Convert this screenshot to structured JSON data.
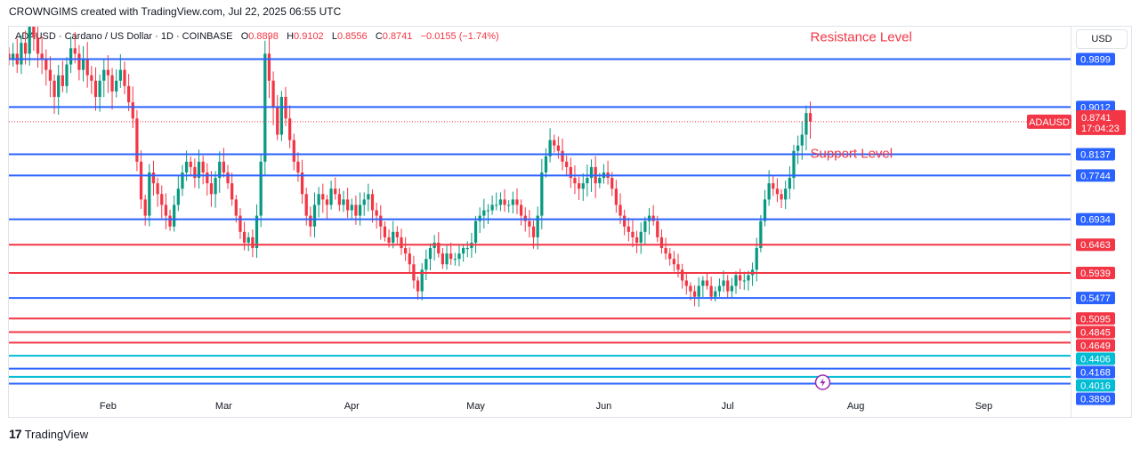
{
  "header": {
    "credit": "CROWNGIMS created with TradingView.com, Jul 22, 2025 06:55 UTC"
  },
  "legend": {
    "symbol": "ADAUSD · Cardano / US Dollar · 1D · COINBASE",
    "o_label": "O",
    "o_value": "0.8898",
    "h_label": "H",
    "h_value": "0.9102",
    "l_label": "L",
    "l_value": "0.8556",
    "c_label": "C",
    "c_value": "0.8741",
    "change": "−0.0155 (−1.74%)"
  },
  "toolbar": {
    "currency": "USD"
  },
  "footer": {
    "brand": "TradingView"
  },
  "colors": {
    "up": "#089981",
    "down": "#f23645",
    "blue": "#2962ff",
    "red": "#f23645",
    "teal": "#00bcd4",
    "annotation": "#f23645"
  },
  "chart_data": {
    "type": "candlestick",
    "symbol": "ADAUSD",
    "x_labels": [
      "Feb",
      "Mar",
      "Apr",
      "May",
      "Jun",
      "Jul",
      "Aug",
      "Sep"
    ],
    "x_dates": [
      "2025-02-01",
      "2025-03-01",
      "2025-04-01",
      "2025-05-01",
      "2025-06-01",
      "2025-07-01",
      "2025-08-01",
      "2025-09-01"
    ],
    "ylim": [
      0.375,
      1.05
    ],
    "last_price": {
      "label": "ADAUSD",
      "value": "0.8741",
      "countdown": "17:04:23",
      "price": 0.8741
    },
    "levels": [
      {
        "price": 0.9899,
        "label": "0.9899",
        "color": "blue"
      },
      {
        "price": 0.9012,
        "label": "0.9012",
        "color": "blue"
      },
      {
        "price": 0.8137,
        "label": "0.8137",
        "color": "blue"
      },
      {
        "price": 0.7744,
        "label": "0.7744",
        "color": "blue"
      },
      {
        "price": 0.6934,
        "label": "0.6934",
        "color": "blue"
      },
      {
        "price": 0.6463,
        "label": "0.6463",
        "color": "red"
      },
      {
        "price": 0.5939,
        "label": "0.5939",
        "color": "red"
      },
      {
        "price": 0.5477,
        "label": "0.5477",
        "color": "blue"
      },
      {
        "price": 0.5095,
        "label": "0.5095",
        "color": "red"
      },
      {
        "price": 0.4845,
        "label": "0.4845",
        "color": "red"
      },
      {
        "price": 0.4649,
        "label": "0.4649",
        "color": "red"
      },
      {
        "price": 0.4406,
        "label": "0.4406",
        "color": "teal"
      },
      {
        "price": 0.4168,
        "label": "0.4168",
        "color": "blue"
      },
      {
        "price": 0.4016,
        "label": "0.4016",
        "color": "teal"
      },
      {
        "price": 0.389,
        "label": "0.3890",
        "color": "blue"
      }
    ],
    "annotations": [
      {
        "text": "Resistance Level",
        "price": 1.023,
        "date": "2025-07-21"
      },
      {
        "text": "Support Level",
        "price": 0.807,
        "date": "2025-07-21"
      }
    ],
    "close_series": {
      "start_date": "2025-01-08",
      "values": [
        0.99,
        1.0,
        0.98,
        1.02,
        1.0,
        1.06,
        1.03,
        1.0,
        0.99,
        0.97,
        0.95,
        0.92,
        0.96,
        0.94,
        0.98,
        1.01,
        1.0,
        0.97,
        0.99,
        0.96,
        0.95,
        0.92,
        0.95,
        0.97,
        0.96,
        0.93,
        0.95,
        0.97,
        0.94,
        0.91,
        0.88,
        0.8,
        0.73,
        0.7,
        0.78,
        0.76,
        0.74,
        0.72,
        0.7,
        0.68,
        0.72,
        0.75,
        0.78,
        0.8,
        0.79,
        0.77,
        0.8,
        0.78,
        0.76,
        0.74,
        0.77,
        0.8,
        0.78,
        0.76,
        0.73,
        0.7,
        0.67,
        0.65,
        0.66,
        0.64,
        0.7,
        0.8,
        1.0,
        0.95,
        0.9,
        0.85,
        0.92,
        0.88,
        0.84,
        0.8,
        0.78,
        0.74,
        0.7,
        0.68,
        0.72,
        0.74,
        0.73,
        0.72,
        0.75,
        0.74,
        0.72,
        0.73,
        0.71,
        0.72,
        0.7,
        0.72,
        0.73,
        0.74,
        0.71,
        0.7,
        0.68,
        0.66,
        0.65,
        0.67,
        0.66,
        0.64,
        0.63,
        0.61,
        0.58,
        0.56,
        0.6,
        0.62,
        0.64,
        0.65,
        0.63,
        0.61,
        0.63,
        0.62,
        0.62,
        0.63,
        0.64,
        0.64,
        0.65,
        0.69,
        0.7,
        0.71,
        0.71,
        0.72,
        0.72,
        0.73,
        0.72,
        0.72,
        0.73,
        0.72,
        0.7,
        0.69,
        0.68,
        0.66,
        0.7,
        0.78,
        0.81,
        0.84,
        0.83,
        0.82,
        0.8,
        0.79,
        0.77,
        0.76,
        0.75,
        0.76,
        0.77,
        0.79,
        0.76,
        0.77,
        0.78,
        0.77,
        0.75,
        0.72,
        0.7,
        0.68,
        0.67,
        0.66,
        0.65,
        0.67,
        0.69,
        0.7,
        0.69,
        0.66,
        0.64,
        0.63,
        0.62,
        0.61,
        0.6,
        0.58,
        0.57,
        0.56,
        0.55,
        0.57,
        0.58,
        0.57,
        0.55,
        0.56,
        0.57,
        0.58,
        0.56,
        0.57,
        0.59,
        0.58,
        0.58,
        0.59,
        0.6,
        0.64,
        0.69,
        0.73,
        0.76,
        0.75,
        0.74,
        0.73,
        0.75,
        0.77,
        0.82,
        0.83,
        0.85,
        0.89,
        0.874
      ]
    }
  }
}
